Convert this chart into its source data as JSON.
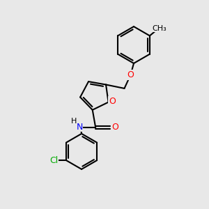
{
  "bg_color": "#e8e8e8",
  "bond_color": "#000000",
  "atom_colors": {
    "O": "#ff0000",
    "N": "#0000ff",
    "Cl": "#00aa00",
    "C": "#000000",
    "H": "#000000"
  },
  "line_width": 1.5,
  "font_size": 9,
  "fig_size": [
    3.0,
    3.0
  ],
  "dpi": 100,
  "xlim": [
    0,
    10
  ],
  "ylim": [
    0,
    10
  ]
}
